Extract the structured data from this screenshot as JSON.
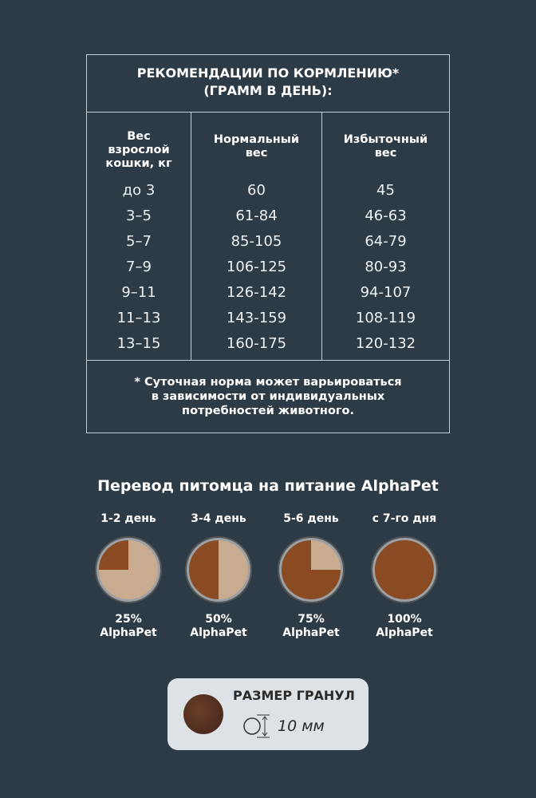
{
  "feeding_table": {
    "title_line1": "РЕКОМЕНДАЦИИ ПО КОРМЛЕНИЮ*",
    "title_line2": "(ГРАММ В ДЕНЬ):",
    "headers": [
      [
        "Вес",
        "взрослой",
        "кошки, кг"
      ],
      [
        "Нормальный",
        "вес"
      ],
      [
        "Избыточный",
        "вес"
      ]
    ],
    "rows": [
      [
        "до 3",
        "60",
        "45"
      ],
      [
        "3–5",
        "61-84",
        "46-63"
      ],
      [
        "5–7",
        "85-105",
        "64-79"
      ],
      [
        "7–9",
        "106-125",
        "80-93"
      ],
      [
        "9–11",
        "126-142",
        "94-107"
      ],
      [
        "11–13",
        "143-159",
        "108-119"
      ],
      [
        "13–15",
        "160-175",
        "120-132"
      ]
    ],
    "footnote": [
      "* Суточная норма может варьироваться",
      "в зависимости от индивидуальных",
      "потребностей животного."
    ]
  },
  "transition": {
    "title": "Перевод питомца на питание",
    "brand": "AlphaPet",
    "steps": [
      {
        "label": "1-2 день",
        "percent_text": "25%",
        "brand": "AlphaPet",
        "percent": 25
      },
      {
        "label": "3-4 день",
        "percent_text": "50%",
        "brand": "AlphaPet",
        "percent": 50
      },
      {
        "label": "5-6 день",
        "percent_text": "75%",
        "brand": "AlphaPet",
        "percent": 75
      },
      {
        "label": "с 7-го дня",
        "percent_text": "100%",
        "brand": "AlphaPet",
        "percent": 100
      }
    ]
  },
  "granule": {
    "title": "РАЗМЕР ГРАНУЛ",
    "size": "10 мм"
  },
  "colors": {
    "background": "#2c3b45",
    "alphapet_food": "#8a4a22",
    "old_food": "#c9ab90"
  }
}
